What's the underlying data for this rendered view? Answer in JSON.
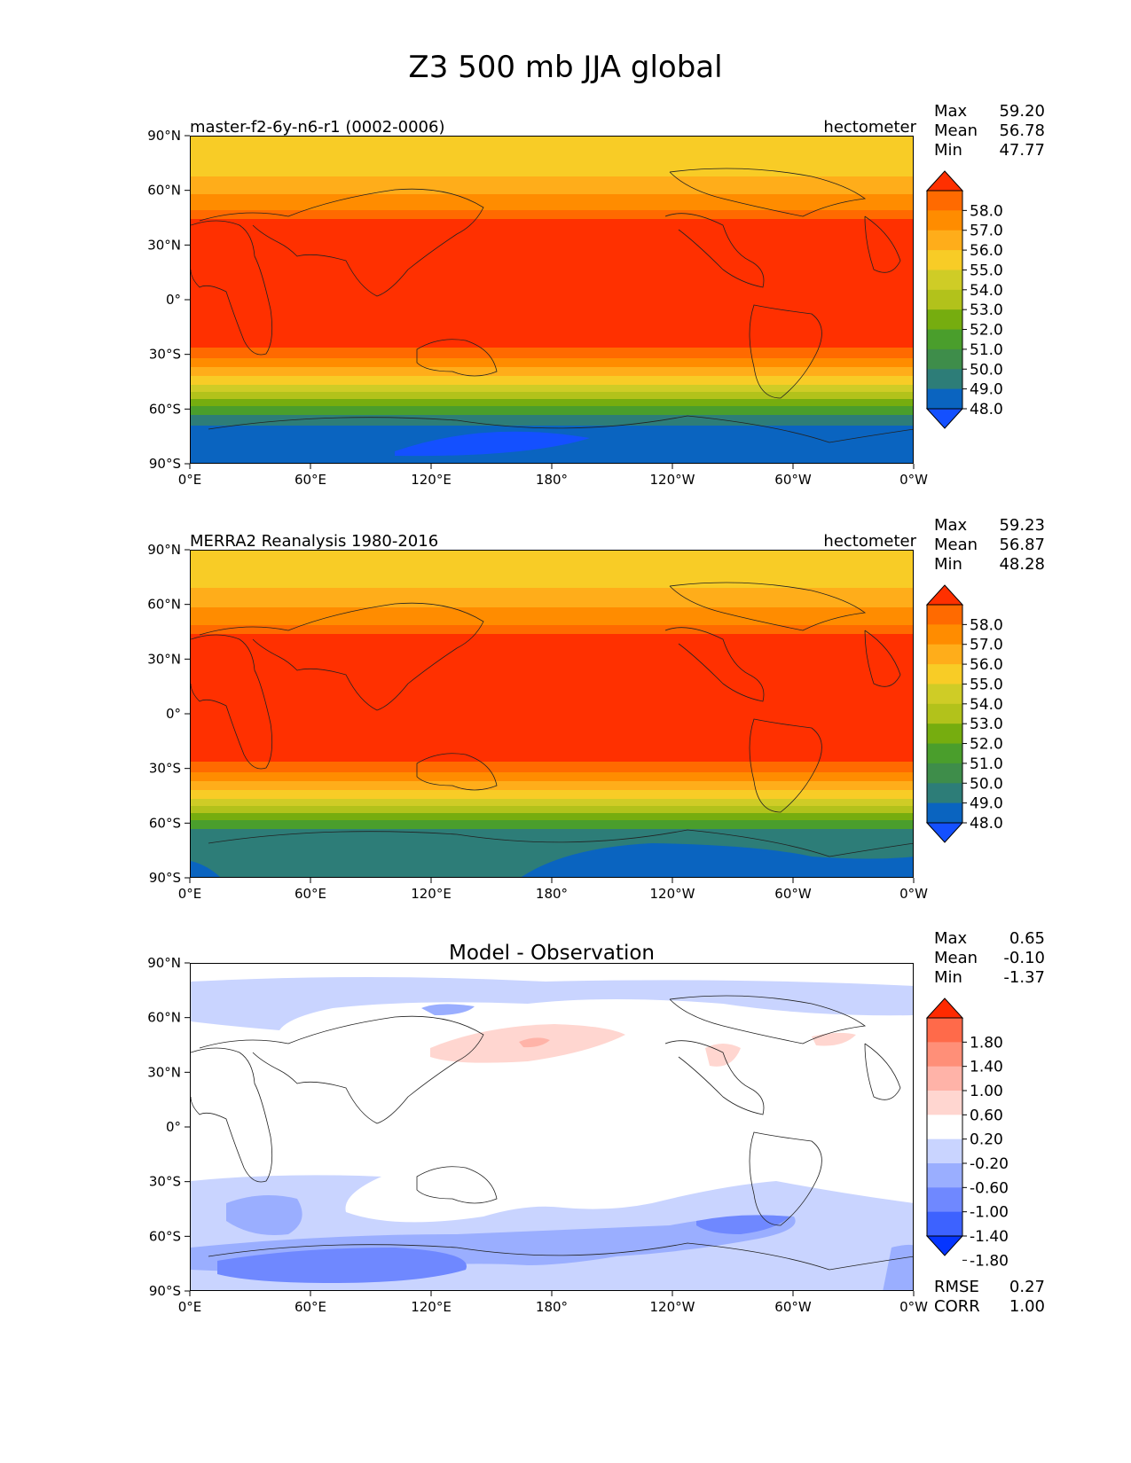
{
  "title": "Z3 500 mb JJA global",
  "chart_data": [
    {
      "type": "heatmap",
      "title_left": "master-f2-6y-n6-r1 (0002-0006)",
      "title_right": "hectometer",
      "stats": [
        {
          "label": "Max",
          "value": "59.20"
        },
        {
          "label": "Mean",
          "value": "56.78"
        },
        {
          "label": "Min",
          "value": "47.77"
        }
      ],
      "xticks": [
        "0°E",
        "60°E",
        "120°E",
        "180°",
        "120°W",
        "60°W",
        "0°W"
      ],
      "yticks": [
        "90°N",
        "60°N",
        "30°N",
        "0°",
        "30°S",
        "60°S",
        "90°S"
      ],
      "xlim": [
        0,
        360
      ],
      "ylim": [
        -90,
        90
      ],
      "colorbar_levels": [
        "58.0",
        "57.0",
        "56.0",
        "55.0",
        "54.0",
        "53.0",
        "52.0",
        "51.0",
        "50.0",
        "49.0",
        "48.0"
      ],
      "colorbar_colors": [
        "#ff3000",
        "#ff6a00",
        "#ff8c00",
        "#ffad1a",
        "#f8cc26",
        "#cfcc26",
        "#b2c21b",
        "#76ad0f",
        "#4a9e2c",
        "#3e8d4a",
        "#2d7d78",
        "#0a64c0",
        "#1450ff"
      ]
    },
    {
      "type": "heatmap",
      "title_left": "MERRA2 Reanalysis 1980-2016",
      "title_right": "hectometer",
      "stats": [
        {
          "label": "Max",
          "value": "59.23"
        },
        {
          "label": "Mean",
          "value": "56.87"
        },
        {
          "label": "Min",
          "value": "48.28"
        }
      ],
      "xticks": [
        "0°E",
        "60°E",
        "120°E",
        "180°",
        "120°W",
        "60°W",
        "0°W"
      ],
      "yticks": [
        "90°N",
        "60°N",
        "30°N",
        "0°",
        "30°S",
        "60°S",
        "90°S"
      ],
      "xlim": [
        0,
        360
      ],
      "ylim": [
        -90,
        90
      ],
      "colorbar_levels": [
        "58.0",
        "57.0",
        "56.0",
        "55.0",
        "54.0",
        "53.0",
        "52.0",
        "51.0",
        "50.0",
        "49.0",
        "48.0"
      ],
      "colorbar_colors": [
        "#ff3000",
        "#ff6a00",
        "#ff8c00",
        "#ffad1a",
        "#f8cc26",
        "#cfcc26",
        "#b2c21b",
        "#76ad0f",
        "#4a9e2c",
        "#3e8d4a",
        "#2d7d78",
        "#0a64c0",
        "#1450ff"
      ]
    },
    {
      "type": "heatmap",
      "title_center": "Model - Observation",
      "stats": [
        {
          "label": "Max",
          "value": "0.65"
        },
        {
          "label": "Mean",
          "value": "-0.10"
        },
        {
          "label": "Min",
          "value": "-1.37"
        }
      ],
      "xticks": [
        "0°E",
        "60°E",
        "120°E",
        "180°",
        "120°W",
        "60°W",
        "0°W"
      ],
      "yticks": [
        "90°N",
        "60°N",
        "30°N",
        "0°",
        "30°S",
        "60°S",
        "90°S"
      ],
      "xlim": [
        0,
        360
      ],
      "ylim": [
        -90,
        90
      ],
      "colorbar_levels": [
        "1.80",
        "1.40",
        "1.00",
        "0.60",
        "0.20",
        "-0.20",
        "-0.60",
        "-1.00",
        "-1.40",
        "-1.80"
      ],
      "colorbar_colors": [
        "#ff2a00",
        "#ff6a4a",
        "#ff8f78",
        "#ffb3a8",
        "#ffd6d0",
        "#ffffff",
        "#c9d4ff",
        "#9aaeff",
        "#6f88ff",
        "#3d62ff",
        "#0535ff"
      ],
      "footer_stats": [
        {
          "label": "RMSE",
          "value": "0.27"
        },
        {
          "label": "CORR",
          "value": "1.00"
        }
      ]
    }
  ]
}
